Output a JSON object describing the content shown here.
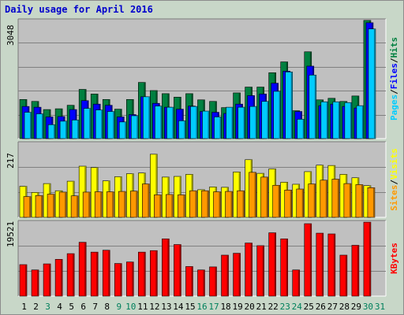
{
  "title": "Daily usage for April 2016",
  "colors": {
    "pages": "#00ccff",
    "files": "#0000ff",
    "hits": "#008040",
    "sites": "#ff9900",
    "visits": "#ffff00",
    "kbytes": "#ff0000",
    "weekend_day": "#00805c",
    "weekday_day": "#000000"
  },
  "right_labels": {
    "top": [
      "Pages",
      "/",
      "Files",
      "/",
      "Hits"
    ],
    "middle": [
      "Sites",
      "/",
      "Visits"
    ],
    "bottom": [
      "KBytes"
    ]
  },
  "chart_data": [
    {
      "type": "bar",
      "panel": "hits-files-pages",
      "ymax_label": "3048",
      "ylim": [
        0,
        3048
      ],
      "categories": [
        "1",
        "2",
        "3",
        "4",
        "5",
        "6",
        "7",
        "8",
        "9",
        "10",
        "11",
        "12",
        "13",
        "14",
        "15",
        "16",
        "17",
        "18",
        "19",
        "20",
        "21",
        "22",
        "23",
        "24",
        "25",
        "26",
        "27",
        "28",
        "29",
        "30",
        "31"
      ],
      "weekend_days": [
        "3",
        "9",
        "10",
        "16",
        "17",
        "23",
        "24",
        "30",
        "31"
      ],
      "series": [
        {
          "name": "Hits",
          "values": [
            1010,
            960,
            750,
            770,
            860,
            1270,
            1150,
            1010,
            760,
            1010,
            1450,
            1240,
            1160,
            1070,
            1160,
            1000,
            960,
            800,
            1180,
            1330,
            1330,
            1700,
            1980,
            720,
            2240,
            1000,
            1040,
            960,
            1100,
            3050,
            0
          ]
        },
        {
          "name": "Files",
          "values": [
            830,
            810,
            560,
            570,
            750,
            980,
            890,
            860,
            560,
            620,
            1080,
            910,
            810,
            760,
            840,
            700,
            680,
            650,
            890,
            1110,
            1150,
            1430,
            1740,
            700,
            1870,
            850,
            890,
            830,
            790,
            2990,
            0
          ]
        },
        {
          "name": "Pages",
          "values": [
            680,
            640,
            360,
            450,
            480,
            780,
            740,
            700,
            430,
            590,
            1080,
            840,
            810,
            460,
            830,
            710,
            560,
            810,
            810,
            830,
            960,
            1220,
            1720,
            500,
            1640,
            950,
            950,
            930,
            850,
            2830,
            0
          ]
        }
      ]
    },
    {
      "type": "bar",
      "panel": "visits-sites",
      "ymax_label": "217",
      "ylim": [
        0,
        217
      ],
      "categories": [
        "1",
        "2",
        "3",
        "4",
        "5",
        "6",
        "7",
        "8",
        "9",
        "10",
        "11",
        "12",
        "13",
        "14",
        "15",
        "16",
        "17",
        "18",
        "19",
        "20",
        "21",
        "22",
        "23",
        "24",
        "25",
        "26",
        "27",
        "28",
        "29",
        "30",
        "31"
      ],
      "series": [
        {
          "name": "Visits",
          "values": [
            91,
            73,
            99,
            78,
            106,
            150,
            146,
            107,
            119,
            128,
            130,
            185,
            118,
            120,
            126,
            81,
            89,
            88,
            133,
            169,
            129,
            142,
            103,
            97,
            134,
            153,
            152,
            126,
            116,
            93,
            0
          ]
        },
        {
          "name": "Sites",
          "values": [
            61,
            64,
            68,
            74,
            63,
            74,
            75,
            75,
            76,
            77,
            98,
            66,
            67,
            66,
            78,
            78,
            75,
            76,
            78,
            132,
            118,
            94,
            80,
            83,
            98,
            109,
            112,
            99,
            96,
            87,
            0
          ]
        }
      ]
    },
    {
      "type": "bar",
      "panel": "kbytes",
      "ymax_label": "19521",
      "ylim": [
        0,
        19521
      ],
      "categories": [
        "1",
        "2",
        "3",
        "4",
        "5",
        "6",
        "7",
        "8",
        "9",
        "10",
        "11",
        "12",
        "13",
        "14",
        "15",
        "16",
        "17",
        "18",
        "19",
        "20",
        "21",
        "22",
        "23",
        "24",
        "25",
        "26",
        "27",
        "28",
        "29",
        "30",
        "31"
      ],
      "series": [
        {
          "name": "KBytes",
          "values": [
            8300,
            6900,
            8500,
            9700,
            11200,
            14200,
            11600,
            12100,
            8600,
            9000,
            11600,
            12000,
            15100,
            13600,
            7800,
            6900,
            7700,
            10800,
            11300,
            14000,
            13300,
            16700,
            15100,
            6900,
            19100,
            16600,
            16400,
            10800,
            13400,
            19500,
            0
          ]
        }
      ]
    }
  ]
}
